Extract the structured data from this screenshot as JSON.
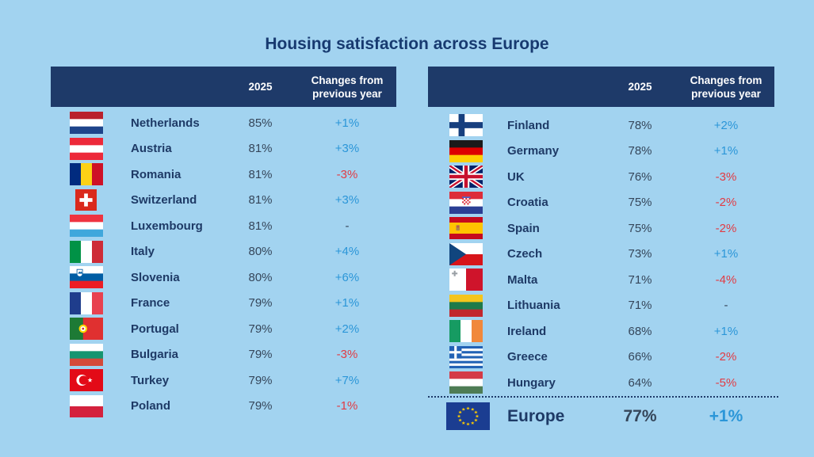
{
  "colors": {
    "background": "#a2d3f0",
    "header_bg": "#1e3a69",
    "header_text": "#ffffff",
    "title_text": "#173a70",
    "country_text": "#1e3a66",
    "value_text": "#35465a",
    "positive": "#2b96d8",
    "negative": "#e23b43",
    "neutral": "#35465a",
    "divider": "#1e3a69"
  },
  "chart_data": {
    "type": "table",
    "title": "Housing satisfaction across Europe",
    "columns": [
      "",
      "2025",
      "Changes from previous year"
    ],
    "tables": [
      {
        "rows": [
          {
            "flag": "netherlands",
            "country": "Netherlands",
            "value": "85%",
            "change": "+1%",
            "direction": "positive"
          },
          {
            "flag": "austria",
            "country": "Austria",
            "value": "81%",
            "change": "+3%",
            "direction": "positive"
          },
          {
            "flag": "romania",
            "country": "Romania",
            "value": "81%",
            "change": "-3%",
            "direction": "negative"
          },
          {
            "flag": "switzerland",
            "country": "Switzerland",
            "value": "81%",
            "change": "+3%",
            "direction": "positive"
          },
          {
            "flag": "luxembourg",
            "country": "Luxembourg",
            "value": "81%",
            "change": "-",
            "direction": "neutral"
          },
          {
            "flag": "italy",
            "country": "Italy",
            "value": "80%",
            "change": "+4%",
            "direction": "positive"
          },
          {
            "flag": "slovenia",
            "country": "Slovenia",
            "value": "80%",
            "change": "+6%",
            "direction": "positive"
          },
          {
            "flag": "france",
            "country": "France",
            "value": "79%",
            "change": "+1%",
            "direction": "positive"
          },
          {
            "flag": "portugal",
            "country": "Portugal",
            "value": "79%",
            "change": "+2%",
            "direction": "positive"
          },
          {
            "flag": "bulgaria",
            "country": "Bulgaria",
            "value": "79%",
            "change": "-3%",
            "direction": "negative"
          },
          {
            "flag": "turkey",
            "country": "Turkey",
            "value": "79%",
            "change": "+7%",
            "direction": "positive"
          },
          {
            "flag": "poland",
            "country": "Poland",
            "value": "79%",
            "change": "-1%",
            "direction": "negative"
          }
        ]
      },
      {
        "rows": [
          {
            "flag": "finland",
            "country": "Finland",
            "value": "78%",
            "change": "+2%",
            "direction": "positive"
          },
          {
            "flag": "germany",
            "country": "Germany",
            "value": "78%",
            "change": "+1%",
            "direction": "positive"
          },
          {
            "flag": "uk",
            "country": "UK",
            "value": "76%",
            "change": "-3%",
            "direction": "negative"
          },
          {
            "flag": "croatia",
            "country": "Croatia",
            "value": "75%",
            "change": "-2%",
            "direction": "negative"
          },
          {
            "flag": "spain",
            "country": "Spain",
            "value": "75%",
            "change": "-2%",
            "direction": "negative"
          },
          {
            "flag": "czech",
            "country": "Czech",
            "value": "73%",
            "change": "+1%",
            "direction": "positive"
          },
          {
            "flag": "malta",
            "country": "Malta",
            "value": "71%",
            "change": "-4%",
            "direction": "negative"
          },
          {
            "flag": "lithuania",
            "country": "Lithuania",
            "value": "71%",
            "change": "-",
            "direction": "neutral"
          },
          {
            "flag": "ireland",
            "country": "Ireland",
            "value": "68%",
            "change": "+1%",
            "direction": "positive"
          },
          {
            "flag": "greece",
            "country": "Greece",
            "value": "66%",
            "change": "-2%",
            "direction": "negative"
          },
          {
            "flag": "hungary",
            "country": "Hungary",
            "value": "64%",
            "change": "-5%",
            "direction": "negative"
          }
        ]
      }
    ],
    "summary": {
      "flag": "europe",
      "country": "Europe",
      "value": "77%",
      "change": "+1%",
      "direction": "positive"
    }
  }
}
